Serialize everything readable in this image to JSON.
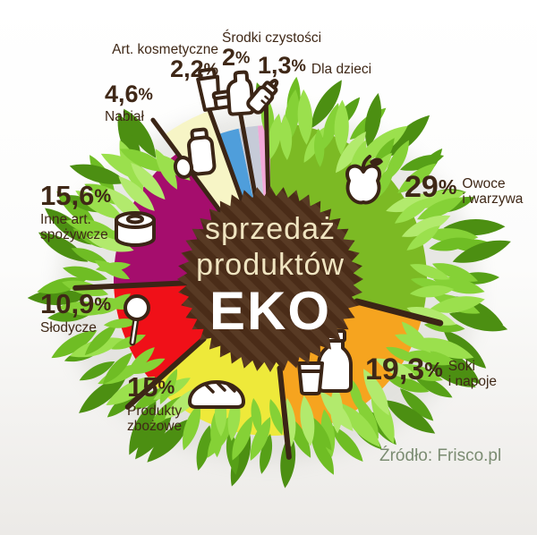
{
  "chart_data": {
    "type": "pie",
    "title": "sprzedaż produktów EKO",
    "center_label_lines": [
      "sprzedaż",
      "produktów",
      "EKO"
    ],
    "source_text": "Źródło: Frisco.pl",
    "legend_position": "around",
    "start_angle_deg": 0,
    "direction": "clockwise",
    "segments": [
      {
        "name": "Owoce i warzywa",
        "name_lines": [
          "Owoce",
          "i warzywa"
        ],
        "value": 29,
        "value_text": "29",
        "unit": "%",
        "color": "#7cba24",
        "icon": "apple-icon"
      },
      {
        "name": "Soki i napoje",
        "name_lines": [
          "Soki",
          "i napoje"
        ],
        "value": 19.3,
        "value_text": "19,3",
        "unit": "%",
        "color": "#f6a41f",
        "icon": "bottle-and-glass-icon"
      },
      {
        "name": "Produkty zbożowe",
        "name_lines": [
          "Produkty",
          "zbożowe"
        ],
        "value": 15,
        "value_text": "15",
        "unit": "%",
        "color": "#eee93a",
        "icon": "bread-icon"
      },
      {
        "name": "Słodycze",
        "name_lines": [
          "Słodycze"
        ],
        "value": 10.9,
        "value_text": "10,9",
        "unit": "%",
        "color": "#f01018",
        "icon": "lollipop-icon"
      },
      {
        "name": "Inne art. spożywcze",
        "name_lines": [
          "Inne art.",
          "spożywcze"
        ],
        "value": 15.6,
        "value_text": "15,6",
        "unit": "%",
        "color": "#a50d6d",
        "icon": "tin-can-icon"
      },
      {
        "name": "Nabiał",
        "name_lines": [
          "Nabiał"
        ],
        "value": 4.6,
        "value_text": "4,6",
        "unit": "%",
        "color": "#f7f5c6",
        "icon": "milk-bottle-icon"
      },
      {
        "name": "Art. kosmetyczne",
        "name_lines": [
          "Art. kosmetyczne"
        ],
        "value": 2.2,
        "value_text": "2,2",
        "unit": "%",
        "color": "#4f9edb",
        "icon": "cosmetic-tube-icon"
      },
      {
        "name": "Środki czystości",
        "name_lines": [
          "Środki czystości"
        ],
        "value": 2,
        "value_text": "2",
        "unit": "%",
        "color": "#c6cbd8",
        "icon": "detergent-bottle-icon"
      },
      {
        "name": "Dla dzieci",
        "name_lines": [
          "Dla dzieci"
        ],
        "value": 1.3,
        "value_text": "1,3",
        "unit": "%",
        "color": "#f2a8d8",
        "icon": "baby-bottle-icon"
      }
    ],
    "colors": {
      "ink": "#3b2516",
      "badge": "#4a2c18",
      "badge_stripe": "#583a24",
      "center_text": "#f0e5c1",
      "center_text_bold": "#ffffff",
      "source": "#7b8c72",
      "leaves": [
        "#56a017",
        "#6fbd24",
        "#85d136",
        "#9be04d",
        "#b2ea6d",
        "#4c8f12"
      ]
    }
  }
}
